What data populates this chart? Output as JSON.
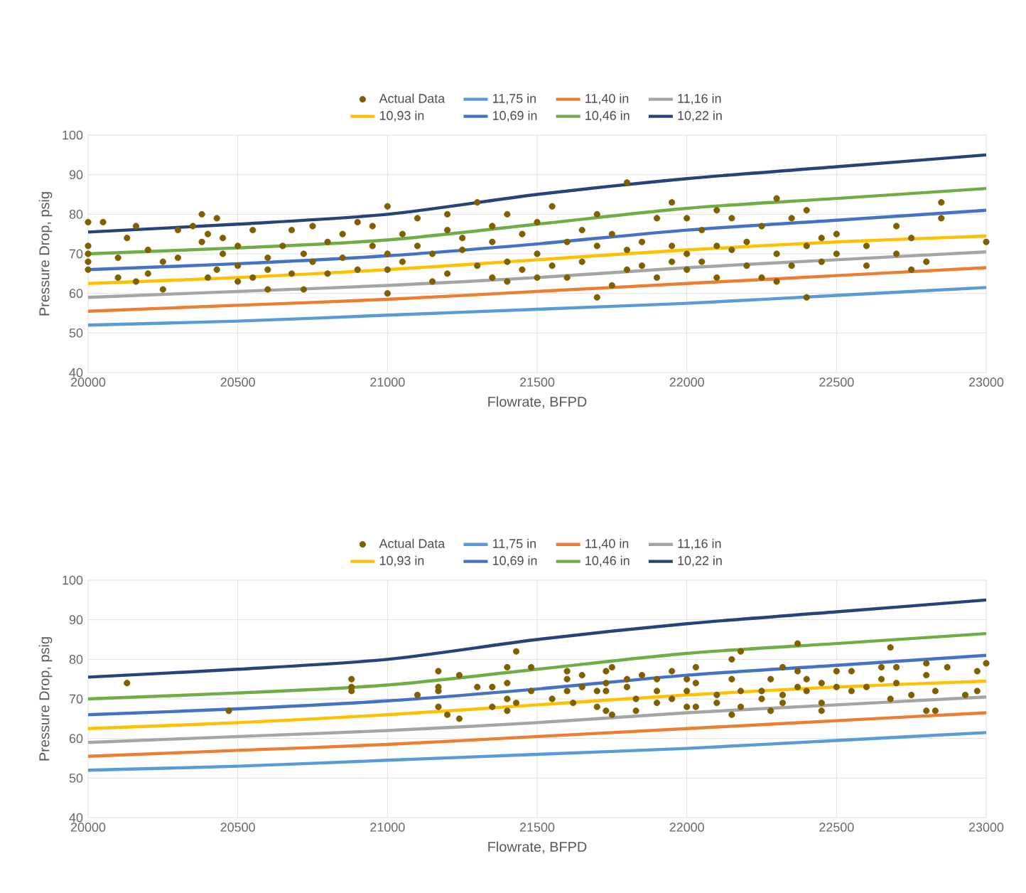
{
  "chart_data": [
    {
      "type": "line",
      "xlabel": "Flowrate, BFPD",
      "ylabel": "Pressure Drop, psig",
      "xlim": [
        20000,
        23000
      ],
      "ylim": [
        40,
        100
      ],
      "xticks": [
        20000,
        20500,
        21000,
        21500,
        22000,
        22500,
        23000
      ],
      "yticks": [
        40,
        50,
        60,
        70,
        80,
        90,
        100
      ],
      "grid": true,
      "legend": "top",
      "series": [
        {
          "name": "Actual Data",
          "type": "scatter",
          "color": "#7f6000",
          "x": [
            20000,
            20000,
            20000,
            20000,
            20000,
            20050,
            20100,
            20100,
            20130,
            20160,
            20160,
            20200,
            20200,
            20250,
            20250,
            20300,
            20300,
            20350,
            20380,
            20380,
            20400,
            20400,
            20430,
            20430,
            20450,
            20450,
            20500,
            20500,
            20500,
            20550,
            20550,
            20600,
            20600,
            20600,
            20650,
            20680,
            20680,
            20720,
            20720,
            20750,
            20750,
            20800,
            20800,
            20850,
            20850,
            20900,
            20900,
            20950,
            20950,
            21000,
            21000,
            21000,
            21000,
            21050,
            21050,
            21100,
            21100,
            21150,
            21150,
            21200,
            21200,
            21200,
            21250,
            21250,
            21300,
            21300,
            21350,
            21350,
            21350,
            21400,
            21400,
            21400,
            21450,
            21450,
            21500,
            21500,
            21500,
            21550,
            21550,
            21600,
            21600,
            21650,
            21650,
            21700,
            21700,
            21700,
            21750,
            21750,
            21800,
            21800,
            21800,
            21850,
            21850,
            21900,
            21900,
            21950,
            21950,
            21950,
            22000,
            22000,
            22000,
            22050,
            22050,
            22100,
            22100,
            22100,
            22150,
            22150,
            22200,
            22200,
            22250,
            22250,
            22300,
            22300,
            22300,
            22350,
            22350,
            22400,
            22400,
            22400,
            22450,
            22450,
            22500,
            22500,
            22600,
            22600,
            22700,
            22700,
            22750,
            22750,
            22800,
            22850,
            22850,
            23000
          ],
          "values": [
            78,
            72,
            70,
            68,
            66,
            78,
            69,
            64,
            74,
            77,
            63,
            71,
            65,
            61,
            68,
            69,
            76,
            77,
            80,
            73,
            64,
            75,
            79,
            66,
            70,
            74,
            72,
            67,
            63,
            76,
            64,
            69,
            66,
            61,
            72,
            76,
            65,
            70,
            61,
            68,
            77,
            65,
            73,
            75,
            69,
            78,
            66,
            72,
            77,
            82,
            70,
            60,
            66,
            75,
            68,
            79,
            72,
            63,
            70,
            76,
            65,
            80,
            71,
            74,
            83,
            67,
            73,
            64,
            77,
            80,
            68,
            63,
            75,
            66,
            70,
            64,
            78,
            82,
            67,
            73,
            64,
            68,
            76,
            80,
            59,
            72,
            62,
            75,
            88,
            71,
            66,
            67,
            73,
            79,
            64,
            83,
            72,
            68,
            79,
            70,
            66,
            76,
            68,
            81,
            72,
            64,
            71,
            79,
            67,
            73,
            77,
            64,
            84,
            70,
            63,
            79,
            67,
            81,
            72,
            59,
            74,
            68,
            75,
            70,
            67,
            72,
            77,
            70,
            74,
            66,
            68,
            83,
            79,
            73
          ]
        },
        {
          "name": "11,75 in",
          "color": "#5b9bd5",
          "x": [
            20000,
            20500,
            21000,
            21500,
            22000,
            22500,
            23000
          ],
          "values": [
            52,
            53,
            54.5,
            56,
            57.5,
            59.5,
            61.5
          ]
        },
        {
          "name": "11,40 in",
          "color": "#ed7d31",
          "x": [
            20000,
            20500,
            21000,
            21500,
            22000,
            22500,
            23000
          ],
          "values": [
            55.5,
            57,
            58.5,
            60.5,
            62.5,
            64.5,
            66.5
          ]
        },
        {
          "name": "11,16 in",
          "color": "#a5a5a5",
          "x": [
            20000,
            20500,
            21000,
            21500,
            22000,
            22500,
            23000
          ],
          "values": [
            59,
            60.5,
            62,
            64,
            66.5,
            68.5,
            70.5
          ]
        },
        {
          "name": "10,93 in",
          "color": "#ffc000",
          "x": [
            20000,
            20500,
            21000,
            21500,
            22000,
            22500,
            23000
          ],
          "values": [
            62.5,
            64,
            66,
            68.5,
            71,
            73,
            74.5
          ]
        },
        {
          "name": "10,69 in",
          "color": "#4472c4",
          "x": [
            20000,
            20500,
            21000,
            21500,
            22000,
            22500,
            23000
          ],
          "values": [
            66,
            67.5,
            69.5,
            72.5,
            76,
            78.5,
            81
          ]
        },
        {
          "name": "10,46 in",
          "color": "#70ad47",
          "x": [
            20000,
            20500,
            21000,
            21500,
            22000,
            22500,
            23000
          ],
          "values": [
            70,
            71.5,
            73.5,
            77.5,
            81.5,
            84,
            86.5
          ]
        },
        {
          "name": "10,22 in",
          "color": "#264478",
          "x": [
            20000,
            20500,
            21000,
            21500,
            22000,
            22500,
            23000
          ],
          "values": [
            75.5,
            77.5,
            80,
            85,
            89,
            92,
            95
          ]
        }
      ]
    },
    {
      "type": "line",
      "xlabel": "Flowrate, BFPD",
      "ylabel": "Pressure Drop, psig",
      "xlim": [
        20000,
        23000
      ],
      "ylim": [
        40,
        100
      ],
      "xticks": [
        20000,
        20500,
        21000,
        21500,
        22000,
        22500,
        23000
      ],
      "yticks": [
        40,
        50,
        60,
        70,
        80,
        90,
        100
      ],
      "grid": true,
      "legend": "top",
      "series": [
        {
          "name": "Actual Data",
          "type": "scatter",
          "color": "#7f6000",
          "x": [
            20130,
            20470,
            20880,
            20880,
            20880,
            21100,
            21170,
            21170,
            21170,
            21170,
            21200,
            21240,
            21240,
            21300,
            21350,
            21350,
            21400,
            21400,
            21400,
            21400,
            21430,
            21430,
            21480,
            21480,
            21550,
            21600,
            21600,
            21600,
            21620,
            21650,
            21650,
            21700,
            21700,
            21730,
            21730,
            21730,
            21730,
            21750,
            21750,
            21800,
            21800,
            21830,
            21830,
            21850,
            21900,
            21900,
            21900,
            21950,
            21950,
            22000,
            22000,
            22000,
            22030,
            22030,
            22030,
            22100,
            22100,
            22150,
            22150,
            22150,
            22180,
            22180,
            22180,
            22250,
            22250,
            22280,
            22280,
            22320,
            22320,
            22320,
            22370,
            22370,
            22370,
            22400,
            22400,
            22450,
            22450,
            22450,
            22500,
            22500,
            22550,
            22550,
            22600,
            22650,
            22650,
            22680,
            22680,
            22700,
            22700,
            22750,
            22800,
            22800,
            22800,
            22830,
            22830,
            22870,
            22930,
            22970,
            22970,
            23000
          ],
          "values": [
            74,
            67,
            75,
            73,
            72,
            71,
            77,
            72,
            68,
            73,
            66,
            65,
            76,
            73,
            68,
            73,
            78,
            74,
            67,
            70,
            82,
            69,
            78,
            72,
            70,
            75,
            77,
            72,
            69,
            73,
            76,
            68,
            72,
            77,
            72,
            67,
            74,
            78,
            66,
            75,
            73,
            67,
            70,
            76,
            72,
            75,
            69,
            77,
            70,
            68,
            75,
            72,
            78,
            68,
            74,
            71,
            69,
            75,
            80,
            66,
            82,
            72,
            68,
            72,
            70,
            67,
            75,
            78,
            71,
            69,
            84,
            77,
            73,
            75,
            72,
            67,
            69,
            74,
            77,
            73,
            77,
            72,
            73,
            78,
            75,
            83,
            70,
            74,
            78,
            71,
            79,
            67,
            76,
            72,
            67,
            78,
            71,
            77,
            72,
            79
          ]
        },
        {
          "name": "11,75 in",
          "color": "#5b9bd5",
          "x": [
            20000,
            20500,
            21000,
            21500,
            22000,
            22500,
            23000
          ],
          "values": [
            52,
            53,
            54.5,
            56,
            57.5,
            59.5,
            61.5
          ]
        },
        {
          "name": "11,40 in",
          "color": "#ed7d31",
          "x": [
            20000,
            20500,
            21000,
            21500,
            22000,
            22500,
            23000
          ],
          "values": [
            55.5,
            57,
            58.5,
            60.5,
            62.5,
            64.5,
            66.5
          ]
        },
        {
          "name": "11,16 in",
          "color": "#a5a5a5",
          "x": [
            20000,
            20500,
            21000,
            21500,
            22000,
            22500,
            23000
          ],
          "values": [
            59,
            60.5,
            62,
            64,
            66.5,
            68.5,
            70.5
          ]
        },
        {
          "name": "10,93 in",
          "color": "#ffc000",
          "x": [
            20000,
            20500,
            21000,
            21500,
            22000,
            22500,
            23000
          ],
          "values": [
            62.5,
            64,
            66,
            68.5,
            71,
            73,
            74.5
          ]
        },
        {
          "name": "10,69 in",
          "color": "#4472c4",
          "x": [
            20000,
            20500,
            21000,
            21500,
            22000,
            22500,
            23000
          ],
          "values": [
            66,
            67.5,
            69.5,
            72.5,
            76,
            78.5,
            81
          ]
        },
        {
          "name": "10,46 in",
          "color": "#70ad47",
          "x": [
            20000,
            20500,
            21000,
            21500,
            22000,
            22500,
            23000
          ],
          "values": [
            70,
            71.5,
            73.5,
            77.5,
            81.5,
            84,
            86.5
          ]
        },
        {
          "name": "10,22 in",
          "color": "#264478",
          "x": [
            20000,
            20500,
            21000,
            21500,
            22000,
            22500,
            23000
          ],
          "values": [
            75.5,
            77.5,
            80,
            85,
            89,
            92,
            95
          ]
        }
      ]
    }
  ]
}
